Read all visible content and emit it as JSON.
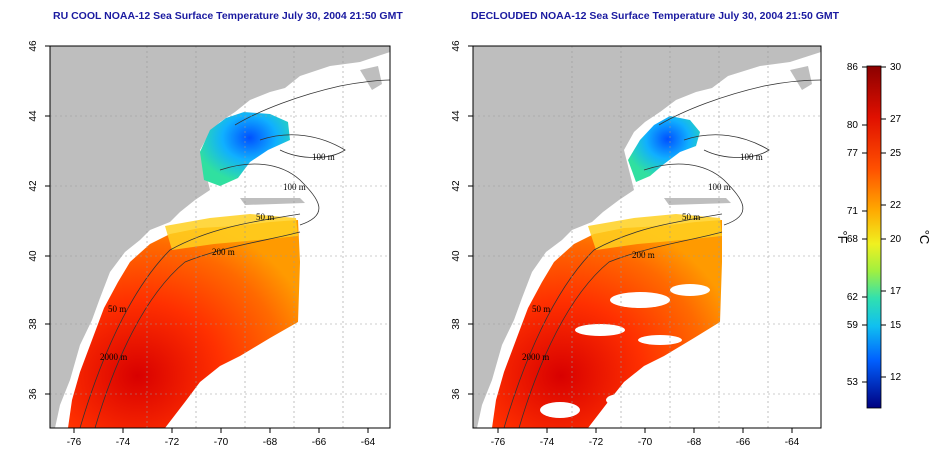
{
  "titles": {
    "left": "RU COOL NOAA-12 Sea Surface Temperature July 30, 2004 21:50 GMT",
    "right": "DECLOUDED NOAA-12 Sea Surface Temperature July 30, 2004 21:50 GMT"
  },
  "axes": {
    "lon_ticks": [
      "-76",
      "-74",
      "-72",
      "-70",
      "-68",
      "-66",
      "-64"
    ],
    "lat_ticks": [
      "46",
      "44",
      "42",
      "40",
      "38",
      "36"
    ]
  },
  "contour_labels": {
    "c100a": "100 m",
    "c100b": "100 m",
    "c50a": "50 m",
    "c200": "200 m",
    "c50b": "50 m",
    "c2000": "2000 m"
  },
  "colorbar": {
    "unit_f": "°F",
    "unit_c": "°C",
    "f_ticks": [
      "86",
      "80",
      "77",
      "71",
      "68",
      "62",
      "59",
      "53"
    ],
    "c_ticks": [
      "30",
      "27",
      "25",
      "22",
      "20",
      "17",
      "15",
      "12"
    ],
    "colors": [
      "#8b0000",
      "#ff2000",
      "#ffa000",
      "#f0ff20",
      "#30e0c0",
      "#00a0ff",
      "#0020c0",
      "#000080"
    ]
  },
  "colors": {
    "land": "#bebebe",
    "title": "#1a1aa0"
  }
}
